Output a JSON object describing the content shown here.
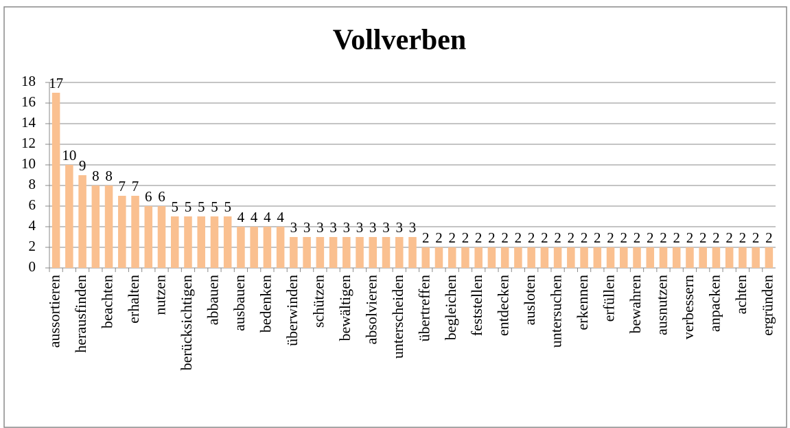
{
  "chart_data": {
    "type": "bar",
    "title": "Vollverben",
    "categories": [
      "aussortieren",
      null,
      "herausfinden",
      null,
      "beachten",
      null,
      "erhalten",
      null,
      "nutzen",
      null,
      "berücksichtigen",
      null,
      "abbauen",
      null,
      "ausbauen",
      null,
      "bedenken",
      null,
      "überwinden",
      null,
      "schützen",
      null,
      "bewältigen",
      null,
      "absolvieren",
      null,
      "unterscheiden",
      null,
      "übertreffen",
      null,
      "begleichen",
      null,
      "feststellen",
      null,
      "entdecken",
      null,
      "ausloten",
      null,
      "untersuchen",
      null,
      "erkennen",
      null,
      "erfüllen",
      null,
      "bewahren",
      null,
      "ausnutzen",
      null,
      "verbessern",
      null,
      "anpacken",
      null,
      "achten",
      null,
      "ergründen"
    ],
    "values": [
      17,
      10,
      9,
      8,
      8,
      7,
      7,
      6,
      6,
      5,
      5,
      5,
      5,
      5,
      4,
      4,
      4,
      4,
      3,
      3,
      3,
      3,
      3,
      3,
      3,
      3,
      3,
      3,
      2,
      2,
      2,
      2,
      2,
      2,
      2,
      2,
      2,
      2,
      2,
      2,
      2,
      2,
      2,
      2,
      2,
      2,
      2,
      2,
      2,
      2,
      2,
      2,
      2,
      2,
      2
    ],
    "color": "#fac090",
    "ylim": [
      0,
      18
    ],
    "yticks": [
      0,
      2,
      4,
      6,
      8,
      10,
      12,
      14,
      16,
      18
    ],
    "grid": true
  }
}
